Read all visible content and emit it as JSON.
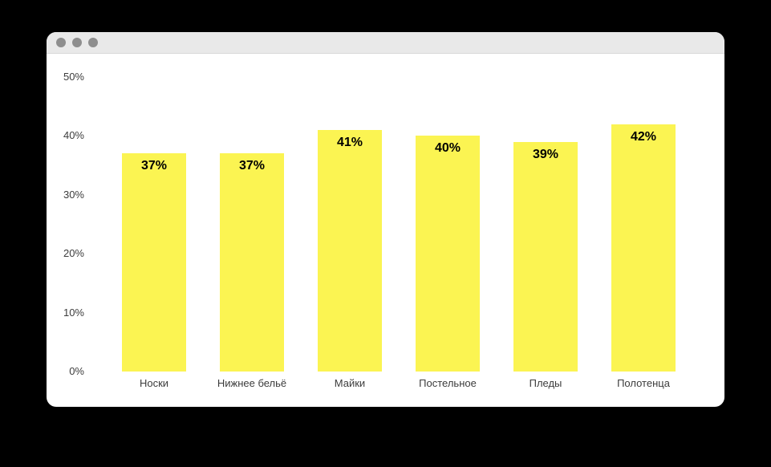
{
  "window": {
    "controls": [
      {
        "icon": "window-control-circle-icon"
      },
      {
        "icon": "window-control-circle-icon"
      },
      {
        "icon": "window-control-circle-icon"
      }
    ]
  },
  "colors": {
    "bar_fill": "#FBF452",
    "page_background": "#000000",
    "window_background": "#FFFFFF",
    "titlebar_background": "#E9E9E9",
    "titlebar_border": "#D9D9D9",
    "control_circle": "#8E8E8E",
    "axis_label_text": "#3C3C3C",
    "value_label_text": "#000000"
  },
  "chart_data": {
    "type": "bar",
    "categories": [
      "Носки",
      "Нижнее бельё",
      "Майки",
      "Постельное",
      "Пледы",
      "Полотенца"
    ],
    "values": [
      37,
      37,
      41,
      40,
      39,
      42
    ],
    "value_labels": [
      "37%",
      "37%",
      "41%",
      "40%",
      "39%",
      "42%"
    ],
    "title": "",
    "xlabel": "",
    "ylabel": "",
    "ylim": [
      0,
      50
    ],
    "yticks": [
      {
        "value": 50,
        "label": "50%"
      },
      {
        "value": 40,
        "label": "40%"
      },
      {
        "value": 30,
        "label": "30%"
      },
      {
        "value": 20,
        "label": "20%"
      },
      {
        "value": 10,
        "label": "10%"
      },
      {
        "value": 0,
        "label": "0%"
      }
    ],
    "grid": false,
    "legend": false,
    "bar_color": "#FBF452"
  }
}
